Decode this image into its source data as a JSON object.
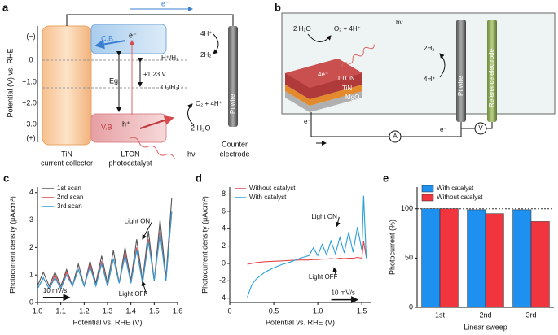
{
  "diagrams": {
    "a": {
      "label": "a",
      "y_axis_label": "Potential (V) vs. RHE",
      "y_levels": [
        "(−)",
        "0",
        "+1.0",
        "+2.0",
        "+3.0",
        "(+)"
      ],
      "cb": "C.B",
      "vb": "V.B",
      "electron": "e⁻",
      "hole": "h⁺",
      "eg": "Eg",
      "h_couple": "H⁺/H₂",
      "o_couple": "O₂/H₂O",
      "gap": "+1.23 V",
      "wire_electron": "e⁻",
      "h_plus": "4H⁺",
      "h2": "2H₂",
      "o2": "O₂ + 4H⁺",
      "water": "2 H₂O",
      "light": "hν",
      "collector": [
        "TiN",
        "current collector"
      ],
      "catalyst": [
        "LTON",
        "photocatalyst"
      ],
      "pt": "Pt wire",
      "counter": [
        "Counter",
        "electrode"
      ]
    },
    "b": {
      "label": "b",
      "water": "2 H₂O",
      "o2": "O₂ + 4H⁺",
      "light": "hν",
      "electrons": "4e⁻",
      "layers": [
        "LTON",
        "TiN",
        "MgO"
      ],
      "h2": "2H₂",
      "h_plus": "4H⁺",
      "pt": "Pt wire",
      "reference": "Reference electrode",
      "e_left": "e⁻",
      "e_right": "e⁻",
      "ammeter": "A",
      "voltmeter": "V"
    }
  },
  "chart_data": [
    {
      "type": "line",
      "panel_label": "c",
      "x": [
        1.0,
        1.025,
        1.05,
        1.075,
        1.1,
        1.125,
        1.15,
        1.175,
        1.2,
        1.225,
        1.25,
        1.275,
        1.3,
        1.325,
        1.35,
        1.375,
        1.4,
        1.425,
        1.45,
        1.475,
        1.5,
        1.525,
        1.55,
        1.575
      ],
      "series": [
        {
          "name": "1st scan",
          "color": "#555555",
          "values": [
            0.6,
            1.1,
            0.6,
            1.1,
            0.6,
            1.2,
            0.6,
            1.4,
            0.6,
            1.5,
            0.7,
            1.7,
            0.7,
            1.9,
            0.7,
            2.0,
            0.8,
            2.3,
            0.8,
            2.6,
            0.8,
            3.0,
            0.9,
            3.8
          ]
        },
        {
          "name": "2nd scan",
          "color": "#e0474c",
          "values": [
            0.5,
            0.9,
            0.5,
            1.0,
            0.5,
            1.1,
            0.6,
            1.2,
            0.6,
            1.4,
            0.6,
            1.5,
            0.6,
            1.6,
            0.7,
            1.8,
            0.7,
            2.0,
            0.7,
            2.3,
            0.8,
            2.6,
            0.8,
            3.3
          ]
        },
        {
          "name": "3rd scan",
          "color": "#2b9fd9",
          "values": [
            0.5,
            0.9,
            0.5,
            0.9,
            0.5,
            1.0,
            0.6,
            1.2,
            0.6,
            1.3,
            0.6,
            1.4,
            0.6,
            1.6,
            0.7,
            1.7,
            0.7,
            1.9,
            0.7,
            2.2,
            0.8,
            2.5,
            0.8,
            3.3
          ]
        }
      ],
      "xlim": [
        1.0,
        1.6
      ],
      "ylim": [
        0,
        4.2
      ],
      "xticks": [
        {
          "value": 1,
          "label": "1.0"
        },
        1.1,
        1.2,
        1.3,
        1.4,
        1.5,
        1.6
      ],
      "yticks": [
        0,
        1,
        2,
        3,
        4
      ],
      "xlabel": "Potential vs. RHE (V)",
      "ylabel": "Photocurrent density (μA/cm²)",
      "legend": "upper left",
      "annotations": [
        "Light ON",
        "Light OFF",
        "10 mV/s"
      ]
    },
    {
      "type": "line",
      "panel_label": "d",
      "x": [
        0.2,
        0.25,
        0.3,
        0.4,
        0.5,
        0.6,
        0.7,
        0.8,
        0.9,
        0.95,
        1.0,
        1.05,
        1.1,
        1.15,
        1.2,
        1.25,
        1.3,
        1.35,
        1.4,
        1.45,
        1.5,
        1.52,
        1.55
      ],
      "series": [
        {
          "name": "Without catalyst",
          "color": "#e0474c",
          "values": [
            -0.1,
            0,
            0.1,
            0.2,
            0.25,
            0.3,
            0.35,
            0.4,
            0.4,
            0.45,
            0.45,
            0.5,
            0.5,
            0.55,
            0.5,
            0.6,
            0.55,
            0.6,
            0.6,
            0.7,
            0.6,
            2.6,
            0.7
          ]
        },
        {
          "name": "With catalyst",
          "color": "#2b9fd9",
          "values": [
            -3.9,
            -2.5,
            -1.8,
            -1.0,
            -0.5,
            -0.1,
            0.2,
            0.6,
            0.9,
            1.8,
            0.9,
            2.2,
            1.0,
            2.6,
            1.1,
            3.0,
            1.2,
            3.6,
            1.3,
            4.2,
            1.5,
            7.8,
            0.6
          ]
        }
      ],
      "xlim": [
        0,
        1.6
      ],
      "ylim": [
        -4.5,
        8.8
      ],
      "xticks": [
        0,
        0.5,
        {
          "value": 1,
          "label": "1.0"
        },
        1.5
      ],
      "yticks": [
        -4,
        -2,
        0,
        2,
        4,
        6,
        8
      ],
      "xlabel": "Potential vs. RHE (V)",
      "ylabel": "Photocurrent density (μA/cm²)",
      "legend": "upper left",
      "annotations": [
        "Light ON",
        "Light OFF",
        "10 mV/s"
      ]
    },
    {
      "type": "bar",
      "panel_label": "e",
      "categories": [
        "1st",
        "2nd",
        "3rd"
      ],
      "series": [
        {
          "name": "With catalyst",
          "color": "#1e90f0",
          "values": [
            100,
            99,
            99
          ]
        },
        {
          "name": "Without catalyst",
          "color": "#f0353f",
          "values": [
            100,
            95,
            87
          ]
        }
      ],
      "ylim": [
        0,
        122
      ],
      "yticks": [
        0,
        50,
        100
      ],
      "reference_line": 100,
      "xlabel": "Linear sweep",
      "ylabel": "Photocurrent (%)",
      "legend": "upper left"
    }
  ]
}
